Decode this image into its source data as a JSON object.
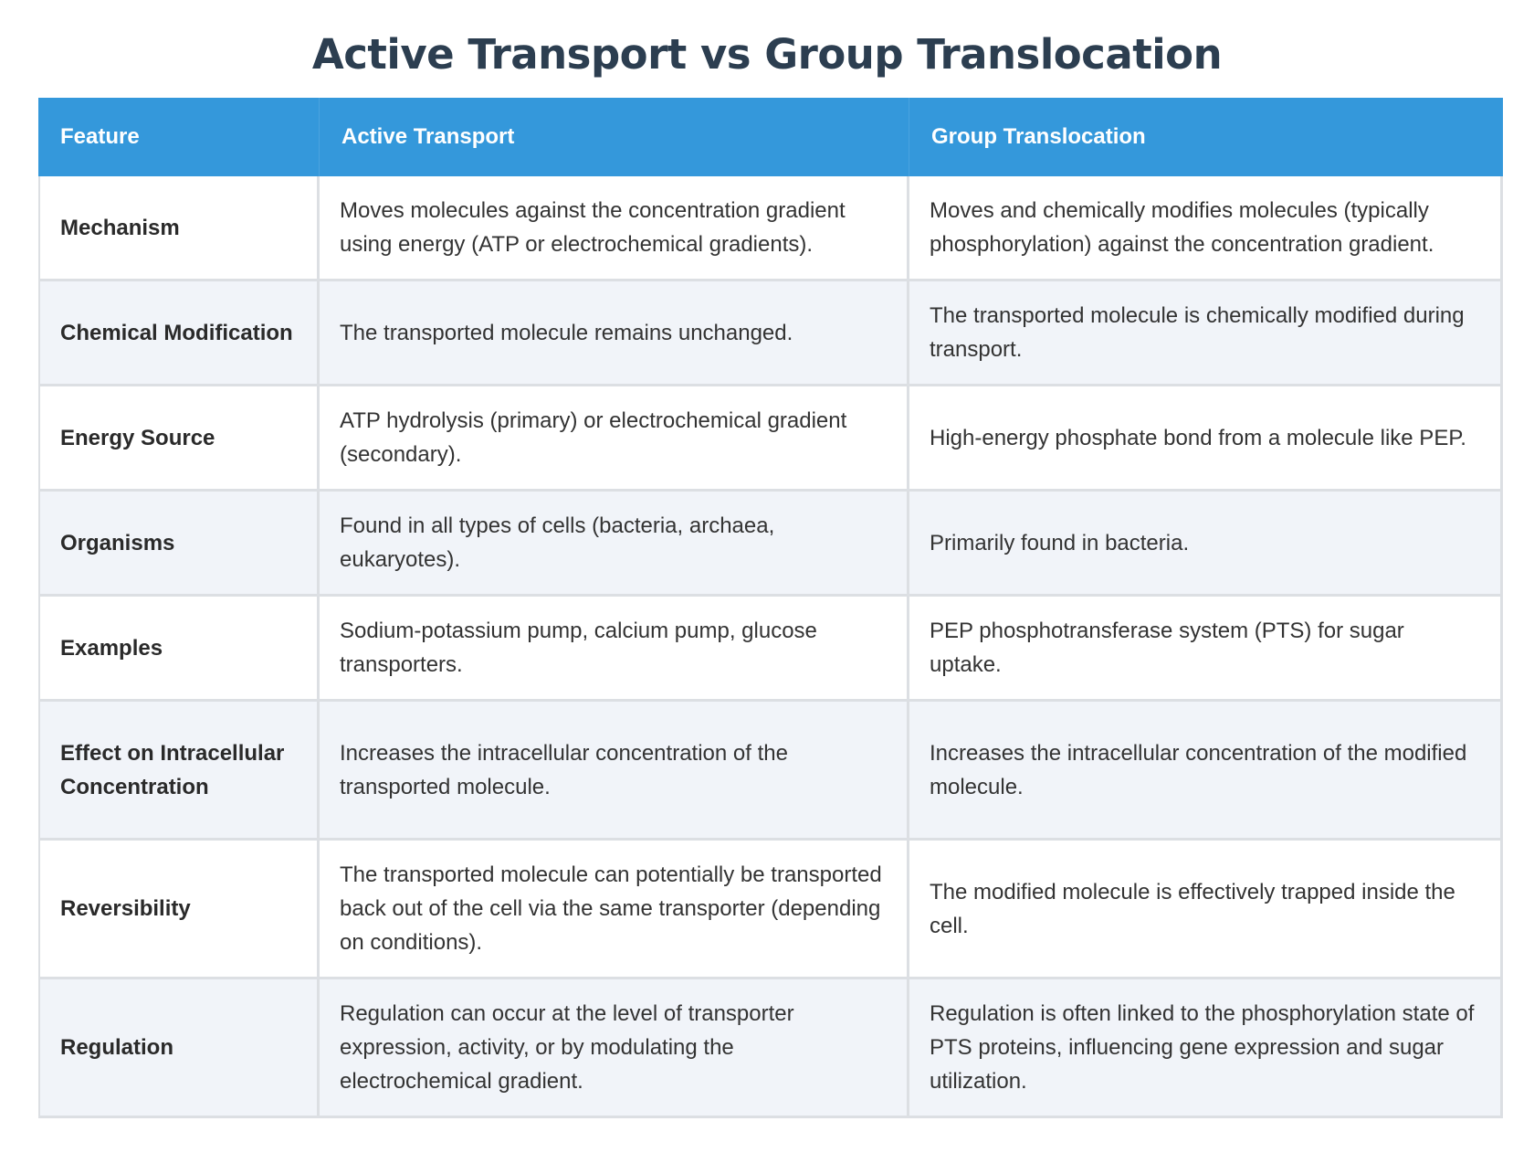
{
  "title": "Active Transport vs Group Translocation",
  "table": {
    "headers": [
      "Feature",
      "Active Transport",
      "Group Translocation"
    ],
    "rows": [
      {
        "feature": "Mechanism",
        "active": "Moves molecules against the concentration gradient using energy (ATP or electrochemical gradients).",
        "group": "Moves and chemically modifies molecules (typically phosphorylation) against the concentration gradient."
      },
      {
        "feature": "Chemical Modification",
        "active": "The transported molecule remains unchanged.",
        "group": "The transported molecule is chemically modified during transport."
      },
      {
        "feature": "Energy Source",
        "active": "ATP hydrolysis (primary) or electrochemical gradient (secondary).",
        "group": "High-energy phosphate bond from a molecule like PEP."
      },
      {
        "feature": "Organisms",
        "active": "Found in all types of cells (bacteria, archaea, eukaryotes).",
        "group": "Primarily found in bacteria."
      },
      {
        "feature": "Examples",
        "active": "Sodium-potassium pump, calcium pump, glucose transporters.",
        "group": "PEP phosphotransferase system (PTS) for sugar uptake."
      },
      {
        "feature": "Effect on Intracellular Concentration",
        "active": "Increases the intracellular concentration of the transported molecule.",
        "group": "Increases the intracellular concentration of the modified molecule."
      },
      {
        "feature": "Reversibility",
        "active": "The transported molecule can potentially be transported back out of the cell via the same transporter (depending on conditions).",
        "group": "The modified molecule is effectively trapped inside the cell."
      },
      {
        "feature": "Regulation",
        "active": "Regulation can occur at the level of transporter expression, activity, or by modulating the electrochemical gradient.",
        "group": "Regulation is often linked to the phosphorylation state of PTS proteins, influencing gene expression and sugar utilization."
      }
    ]
  },
  "colors": {
    "header_bg": "#3498db",
    "header_text": "#ffffff",
    "title_text": "#2c3e50",
    "row_alt_bg": "#f1f4f9",
    "border": "#dcdfe3"
  }
}
